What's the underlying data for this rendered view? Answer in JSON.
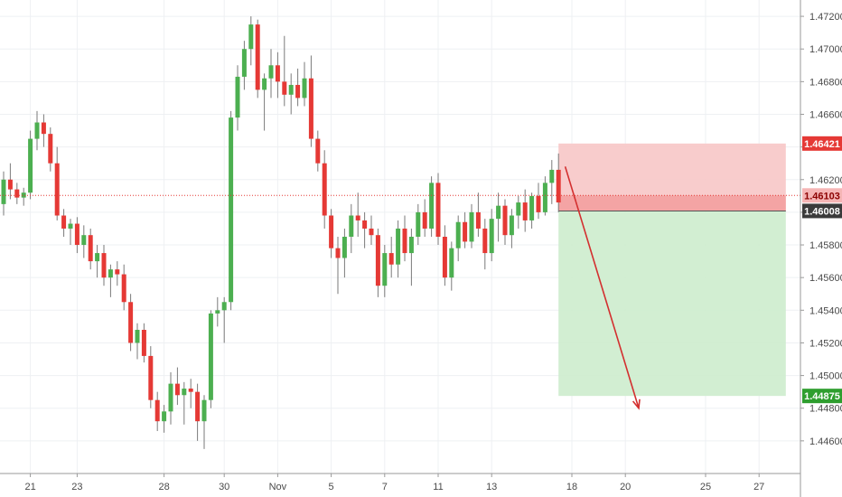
{
  "chart_data": {
    "type": "candlestick",
    "instrument_colors": {
      "up": "#4caf50",
      "down": "#e53935",
      "wick": "#7a7a7a"
    },
    "ylim": [
      1.444,
      1.473
    ],
    "y_ticks": [
      "1.47200",
      "1.47000",
      "1.46800",
      "1.46600",
      "1.46400",
      "1.46200",
      "1.46000",
      "1.45800",
      "1.45600",
      "1.45400",
      "1.45200",
      "1.45000",
      "1.44800",
      "1.44600"
    ],
    "x_ticks": [
      {
        "label": "21",
        "index": 4
      },
      {
        "label": "23",
        "index": 11
      },
      {
        "label": "28",
        "index": 24
      },
      {
        "label": "30",
        "index": 33
      },
      {
        "label": "Nov",
        "index": 41
      },
      {
        "label": "5",
        "index": 49
      },
      {
        "label": "7",
        "index": 57
      },
      {
        "label": "11",
        "index": 65
      },
      {
        "label": "13",
        "index": 73
      },
      {
        "label": "18",
        "index": 85
      },
      {
        "label": "20",
        "index": 93
      },
      {
        "label": "25",
        "index": 105
      },
      {
        "label": "27",
        "index": 113
      }
    ],
    "price_labels": [
      {
        "value": 1.46421,
        "text": "1.46421",
        "bg": "#e53935",
        "fg": "#ffffff"
      },
      {
        "value": 1.46103,
        "text": "1.46103",
        "bg": "#f5b5b5",
        "fg": "#8b0000"
      },
      {
        "value": 1.46008,
        "text": "1.46008",
        "bg": "#3a3a3a",
        "fg": "#ffffff"
      },
      {
        "value": 1.44875,
        "text": "1.44875",
        "bg": "#2e9e2e",
        "fg": "#ffffff"
      }
    ],
    "current_price": 1.46103,
    "position": {
      "type": "short",
      "entry": 1.46008,
      "stop": 1.46421,
      "target": 1.44875,
      "start_index": 83,
      "end_index": 117,
      "loss_color": "#f7c6c6",
      "loss_color_strong": "#f29a9a",
      "profit_color": "#cdeccd"
    },
    "arrow": {
      "from": {
        "index": 84,
        "value": 1.4628
      },
      "to": {
        "index": 95,
        "value": 1.448
      },
      "color": "#d32f2f"
    },
    "candles": [
      [
        1.4605,
        1.4625,
        1.4598,
        1.462
      ],
      [
        1.462,
        1.463,
        1.4608,
        1.4614
      ],
      [
        1.4614,
        1.4618,
        1.4605,
        1.4609
      ],
      [
        1.4609,
        1.4615,
        1.4604,
        1.4612
      ],
      [
        1.4612,
        1.465,
        1.4608,
        1.4645
      ],
      [
        1.4645,
        1.4662,
        1.4638,
        1.4655
      ],
      [
        1.4655,
        1.466,
        1.464,
        1.4648
      ],
      [
        1.4648,
        1.4652,
        1.4625,
        1.463
      ],
      [
        1.463,
        1.464,
        1.4595,
        1.4598
      ],
      [
        1.4598,
        1.4602,
        1.4585,
        1.459
      ],
      [
        1.459,
        1.4596,
        1.458,
        1.4593
      ],
      [
        1.4593,
        1.4597,
        1.4575,
        1.458
      ],
      [
        1.458,
        1.4592,
        1.4572,
        1.4586
      ],
      [
        1.4586,
        1.459,
        1.4565,
        1.457
      ],
      [
        1.457,
        1.458,
        1.456,
        1.4575
      ],
      [
        1.4575,
        1.458,
        1.4555,
        1.456
      ],
      [
        1.456,
        1.4568,
        1.4548,
        1.4565
      ],
      [
        1.4565,
        1.457,
        1.4555,
        1.4562
      ],
      [
        1.4562,
        1.4568,
        1.454,
        1.4545
      ],
      [
        1.4545,
        1.455,
        1.4515,
        1.452
      ],
      [
        1.452,
        1.4532,
        1.451,
        1.4528
      ],
      [
        1.4528,
        1.4532,
        1.4508,
        1.4512
      ],
      [
        1.4512,
        1.4518,
        1.448,
        1.4485
      ],
      [
        1.4485,
        1.449,
        1.4466,
        1.4472
      ],
      [
        1.4472,
        1.4482,
        1.4465,
        1.4478
      ],
      [
        1.4478,
        1.4502,
        1.447,
        1.4495
      ],
      [
        1.4495,
        1.4505,
        1.4482,
        1.4488
      ],
      [
        1.4488,
        1.4496,
        1.447,
        1.4492
      ],
      [
        1.4492,
        1.4498,
        1.448,
        1.449
      ],
      [
        1.449,
        1.4495,
        1.446,
        1.4472
      ],
      [
        1.4472,
        1.4488,
        1.4455,
        1.4485
      ],
      [
        1.4485,
        1.454,
        1.448,
        1.4538
      ],
      [
        1.4538,
        1.4548,
        1.453,
        1.454
      ],
      [
        1.454,
        1.4548,
        1.452,
        1.4545
      ],
      [
        1.4545,
        1.4662,
        1.454,
        1.4658
      ],
      [
        1.4658,
        1.469,
        1.465,
        1.4683
      ],
      [
        1.4683,
        1.4705,
        1.4675,
        1.47
      ],
      [
        1.47,
        1.472,
        1.469,
        1.4715
      ],
      [
        1.4715,
        1.4718,
        1.467,
        1.4675
      ],
      [
        1.4675,
        1.4685,
        1.465,
        1.4682
      ],
      [
        1.4682,
        1.47,
        1.467,
        1.469
      ],
      [
        1.469,
        1.4698,
        1.467,
        1.468
      ],
      [
        1.468,
        1.4708,
        1.4665,
        1.4672
      ],
      [
        1.4672,
        1.4685,
        1.466,
        1.4678
      ],
      [
        1.4678,
        1.4688,
        1.4665,
        1.467
      ],
      [
        1.467,
        1.4692,
        1.4665,
        1.4682
      ],
      [
        1.4682,
        1.4696,
        1.464,
        1.4645
      ],
      [
        1.4645,
        1.465,
        1.4625,
        1.463
      ],
      [
        1.463,
        1.4638,
        1.459,
        1.4598
      ],
      [
        1.4598,
        1.4602,
        1.4572,
        1.4578
      ],
      [
        1.4578,
        1.4585,
        1.455,
        1.4572
      ],
      [
        1.4572,
        1.459,
        1.456,
        1.4585
      ],
      [
        1.4585,
        1.4605,
        1.4575,
        1.4598
      ],
      [
        1.4598,
        1.4612,
        1.4585,
        1.4595
      ],
      [
        1.4595,
        1.46,
        1.4578,
        1.459
      ],
      [
        1.459,
        1.4598,
        1.458,
        1.4586
      ],
      [
        1.4586,
        1.459,
        1.4548,
        1.4555
      ],
      [
        1.4555,
        1.458,
        1.4548,
        1.4575
      ],
      [
        1.4575,
        1.4585,
        1.456,
        1.4568
      ],
      [
        1.4568,
        1.4595,
        1.456,
        1.459
      ],
      [
        1.459,
        1.4598,
        1.457,
        1.4575
      ],
      [
        1.4575,
        1.459,
        1.4555,
        1.4585
      ],
      [
        1.4585,
        1.4605,
        1.458,
        1.46
      ],
      [
        1.46,
        1.4608,
        1.4585,
        1.459
      ],
      [
        1.459,
        1.4622,
        1.4585,
        1.4618
      ],
      [
        1.4618,
        1.4624,
        1.458,
        1.4585
      ],
      [
        1.4585,
        1.4592,
        1.4555,
        1.456
      ],
      [
        1.456,
        1.4582,
        1.4552,
        1.4578
      ],
      [
        1.4578,
        1.4598,
        1.457,
        1.4594
      ],
      [
        1.4594,
        1.46,
        1.4578,
        1.4582
      ],
      [
        1.4582,
        1.4605,
        1.4578,
        1.46
      ],
      [
        1.46,
        1.4612,
        1.4585,
        1.459
      ],
      [
        1.459,
        1.4596,
        1.4565,
        1.4575
      ],
      [
        1.4575,
        1.4602,
        1.457,
        1.4596
      ],
      [
        1.4596,
        1.4612,
        1.4582,
        1.4604
      ],
      [
        1.4604,
        1.4608,
        1.458,
        1.4586
      ],
      [
        1.4586,
        1.4602,
        1.4578,
        1.4598
      ],
      [
        1.4598,
        1.461,
        1.459,
        1.4606
      ],
      [
        1.4606,
        1.4614,
        1.4588,
        1.4595
      ],
      [
        1.4595,
        1.4612,
        1.459,
        1.461
      ],
      [
        1.461,
        1.4618,
        1.4596,
        1.46
      ],
      [
        1.46,
        1.4622,
        1.4598,
        1.4618
      ],
      [
        1.4618,
        1.4632,
        1.4605,
        1.4626
      ],
      [
        1.4626,
        1.4636,
        1.46,
        1.4606
      ]
    ]
  }
}
